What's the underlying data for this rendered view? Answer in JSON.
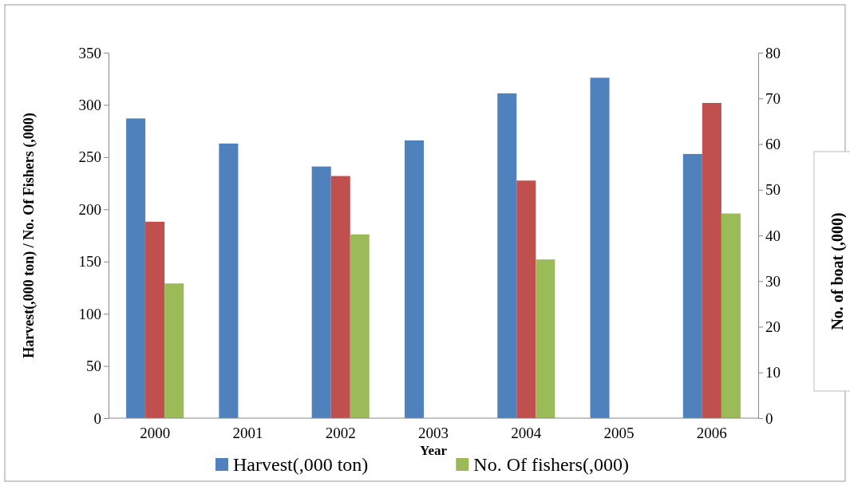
{
  "chart_data": {
    "type": "bar",
    "xlabel": "Year",
    "ylabel": "Harvest(,000 ton) / No. Of Fishers (,000)",
    "y2label": "No. of  boat (,000)",
    "categories": [
      "2000",
      "2001",
      "2002",
      "2003",
      "2004",
      "2005",
      "2006"
    ],
    "series": [
      {
        "name": "Harvest(,000 ton)",
        "color": "#4f81bd",
        "values": [
          287,
          263,
          241,
          266,
          311,
          326,
          253
        ]
      },
      {
        "color": "#c0504d",
        "axis": "y2",
        "values": [
          43,
          null,
          53,
          null,
          52,
          null,
          69
        ]
      },
      {
        "name": "No. Of fishers(,000)",
        "color": "#9bbb59",
        "values": [
          129,
          null,
          176,
          null,
          152,
          null,
          196
        ]
      }
    ],
    "ylim": [
      0,
      350
    ],
    "yticks": [
      0,
      50,
      100,
      150,
      200,
      250,
      300,
      350
    ],
    "y2lim": [
      0,
      80
    ],
    "y2ticks": [
      0,
      10,
      20,
      30,
      40,
      50,
      60,
      70,
      80
    ],
    "legend": "bottom"
  }
}
